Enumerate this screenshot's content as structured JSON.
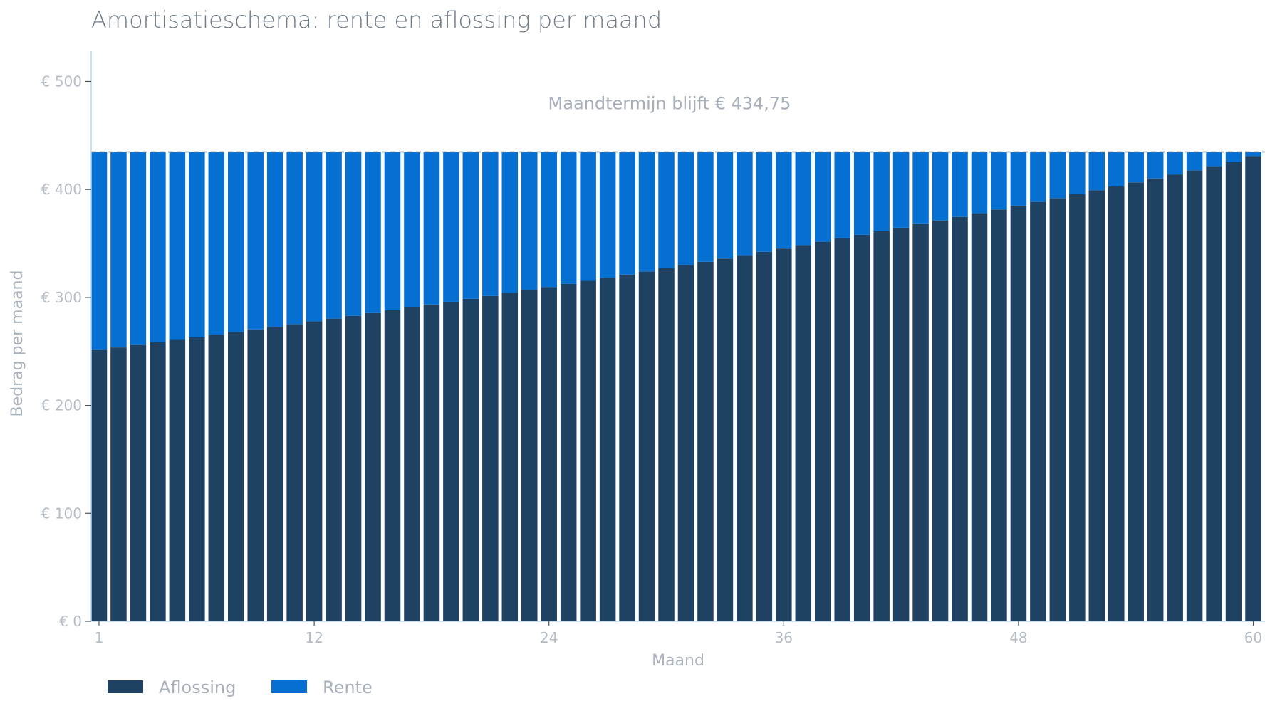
{
  "chart_data": {
    "type": "bar",
    "stacked": true,
    "title": "Amortisatieschema: rente en aflossing per maand",
    "xlabel": "Maand",
    "ylabel": "Bedrag per maand",
    "x": [
      1,
      2,
      3,
      4,
      5,
      6,
      7,
      8,
      9,
      10,
      11,
      12,
      13,
      14,
      15,
      16,
      17,
      18,
      19,
      20,
      21,
      22,
      23,
      24,
      25,
      26,
      27,
      28,
      29,
      30,
      31,
      32,
      33,
      34,
      35,
      36,
      37,
      38,
      39,
      40,
      41,
      42,
      43,
      44,
      45,
      46,
      47,
      48,
      49,
      50,
      51,
      52,
      53,
      54,
      55,
      56,
      57,
      58,
      59,
      60
    ],
    "xticks": [
      1,
      12,
      24,
      36,
      48,
      60
    ],
    "xlim": [
      0.6,
      60.6
    ],
    "ylim": [
      0,
      528
    ],
    "yticks": [
      0,
      100,
      200,
      300,
      400,
      500
    ],
    "ytick_labels": [
      "€ 0",
      "€ 100",
      "€ 200",
      "€ 300",
      "€ 400",
      "€ 500"
    ],
    "series": [
      {
        "name": "Aflossing",
        "color": "#1f4263",
        "values": [
          251.4,
          253.7,
          256.0,
          258.4,
          260.7,
          263.1,
          265.5,
          267.9,
          270.4,
          272.8,
          275.3,
          277.8,
          280.4,
          282.9,
          285.5,
          288.1,
          290.7,
          293.4,
          296.0,
          298.7,
          301.4,
          304.2,
          306.9,
          309.7,
          312.5,
          315.4,
          318.2,
          321.1,
          324.1,
          327.0,
          330.0,
          333.0,
          336.0,
          339.1,
          342.2,
          345.3,
          348.4,
          351.6,
          354.8,
          358.0,
          361.3,
          364.6,
          367.9,
          371.3,
          374.6,
          378.0,
          381.5,
          385.0,
          388.5,
          392.0,
          395.6,
          399.2,
          402.8,
          406.5,
          410.2,
          413.9,
          417.7,
          421.5,
          425.3,
          431.0
        ]
      },
      {
        "name": "Rente",
        "color": "#0570d1",
        "values": [
          183.35,
          181.05,
          178.75,
          176.35,
          174.05,
          171.65,
          169.25,
          166.85,
          164.35,
          161.95,
          159.45,
          156.95,
          154.35,
          151.85,
          149.25,
          146.65,
          144.05,
          141.35,
          138.75,
          136.05,
          133.35,
          130.55,
          127.85,
          125.05,
          122.25,
          119.35,
          116.55,
          113.65,
          110.65,
          107.75,
          104.75,
          101.75,
          98.75,
          95.65,
          92.55,
          89.45,
          86.35,
          83.15,
          79.95,
          76.75,
          73.45,
          70.15,
          66.85,
          63.45,
          60.15,
          56.75,
          53.25,
          49.75,
          46.25,
          42.75,
          39.15,
          35.55,
          31.95,
          28.25,
          24.55,
          20.85,
          17.05,
          13.25,
          9.45,
          3.75
        ]
      }
    ],
    "reference_line": {
      "value": 434.75,
      "style": "dashed",
      "color": "#7f8c99"
    },
    "annotation": "Maandtermijn blijft € 434,75",
    "legend_position": "bottom-left",
    "grid": false
  }
}
